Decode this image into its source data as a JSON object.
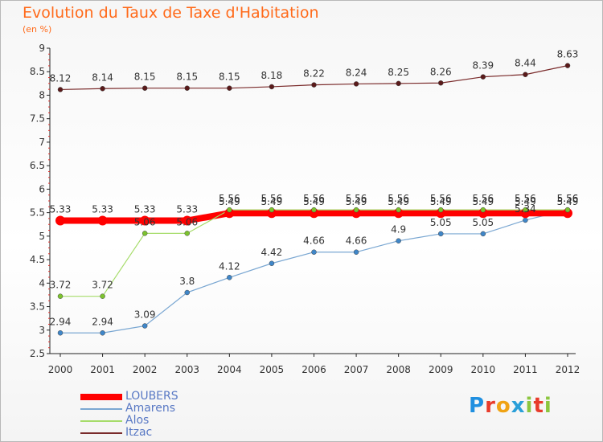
{
  "logo": {
    "letters": [
      "P",
      "r",
      "o",
      "x",
      "i",
      "t",
      "i"
    ],
    "colors": [
      "#1f8fe0",
      "#e83b2b",
      "#f0a314",
      "#2a9fd8",
      "#8cc63f",
      "#e83b2b",
      "#8cc63f"
    ]
  },
  "chart_data": {
    "type": "line",
    "title": "Evolution du Taux de Taxe d'Habitation",
    "subtitle": "(en %)",
    "x": [
      "2000",
      "2001",
      "2002",
      "2003",
      "2004",
      "2005",
      "2006",
      "2007",
      "2008",
      "2009",
      "2010",
      "2011",
      "2012"
    ],
    "ylim": [
      2.5,
      9
    ],
    "yticks": [
      "2.5",
      "3",
      "3.5",
      "4",
      "4.5",
      "5",
      "5.5",
      "6",
      "6.5",
      "7",
      "7.5",
      "8",
      "8.5",
      "9"
    ],
    "grid": false,
    "legend": "bottom-left",
    "series": [
      {
        "name": "Itzac",
        "color": "#7a2b2b",
        "marker": "#5a1a1a",
        "width": 1.2,
        "r": 3,
        "values": [
          8.12,
          8.14,
          8.15,
          8.15,
          8.15,
          8.18,
          8.22,
          8.24,
          8.25,
          8.26,
          8.39,
          8.44,
          8.63
        ],
        "labels": [
          "8.12",
          "8.14",
          "8.15",
          "8.15",
          "8.15",
          "8.18",
          "8.22",
          "8.24",
          "8.25",
          "8.26",
          "8.39",
          "8.44",
          "8.63"
        ]
      },
      {
        "name": "Amarens",
        "color": "#7aa7d2",
        "marker": "#3f86c8",
        "width": 1.2,
        "r": 3,
        "values": [
          2.94,
          2.94,
          3.09,
          3.8,
          4.12,
          4.42,
          4.66,
          4.66,
          4.9,
          5.05,
          5.05,
          5.34,
          5.56
        ],
        "labels": [
          "2.94",
          "2.94",
          "3.09",
          "3.8",
          "4.12",
          "4.42",
          "4.66",
          "4.66",
          "4.9",
          "5.05",
          "5.05",
          "5.34",
          "5.56"
        ]
      },
      {
        "name": "LOUBERS",
        "color": "#ff0000",
        "marker": "#ff0000",
        "width": 8,
        "r": 6,
        "values": [
          5.33,
          5.33,
          5.33,
          5.33,
          5.49,
          5.49,
          5.49,
          5.49,
          5.49,
          5.49,
          5.49,
          5.49,
          5.49
        ],
        "labels": [
          "5.33",
          "5.33",
          "5.33",
          "5.33",
          "5.49",
          "5.49",
          "5.49",
          "5.49",
          "5.49",
          "5.49",
          "5.49",
          "5.49",
          "5.49"
        ]
      },
      {
        "name": "Alos",
        "color": "#a6dc6a",
        "marker": "#7cc22e",
        "width": 1.2,
        "r": 3,
        "values": [
          3.72,
          3.72,
          5.06,
          5.06,
          5.56,
          5.56,
          5.56,
          5.56,
          5.56,
          5.56,
          5.56,
          5.56,
          5.56
        ],
        "labels": [
          "3.72",
          "3.72",
          "5.06",
          "5.06",
          "5.56",
          "5.56",
          "5.56",
          "5.56",
          "5.56",
          "5.56",
          "5.56",
          "5.56",
          "5.56"
        ]
      }
    ],
    "legend_order": [
      "LOUBERS",
      "Amarens",
      "Alos",
      "Itzac"
    ]
  }
}
